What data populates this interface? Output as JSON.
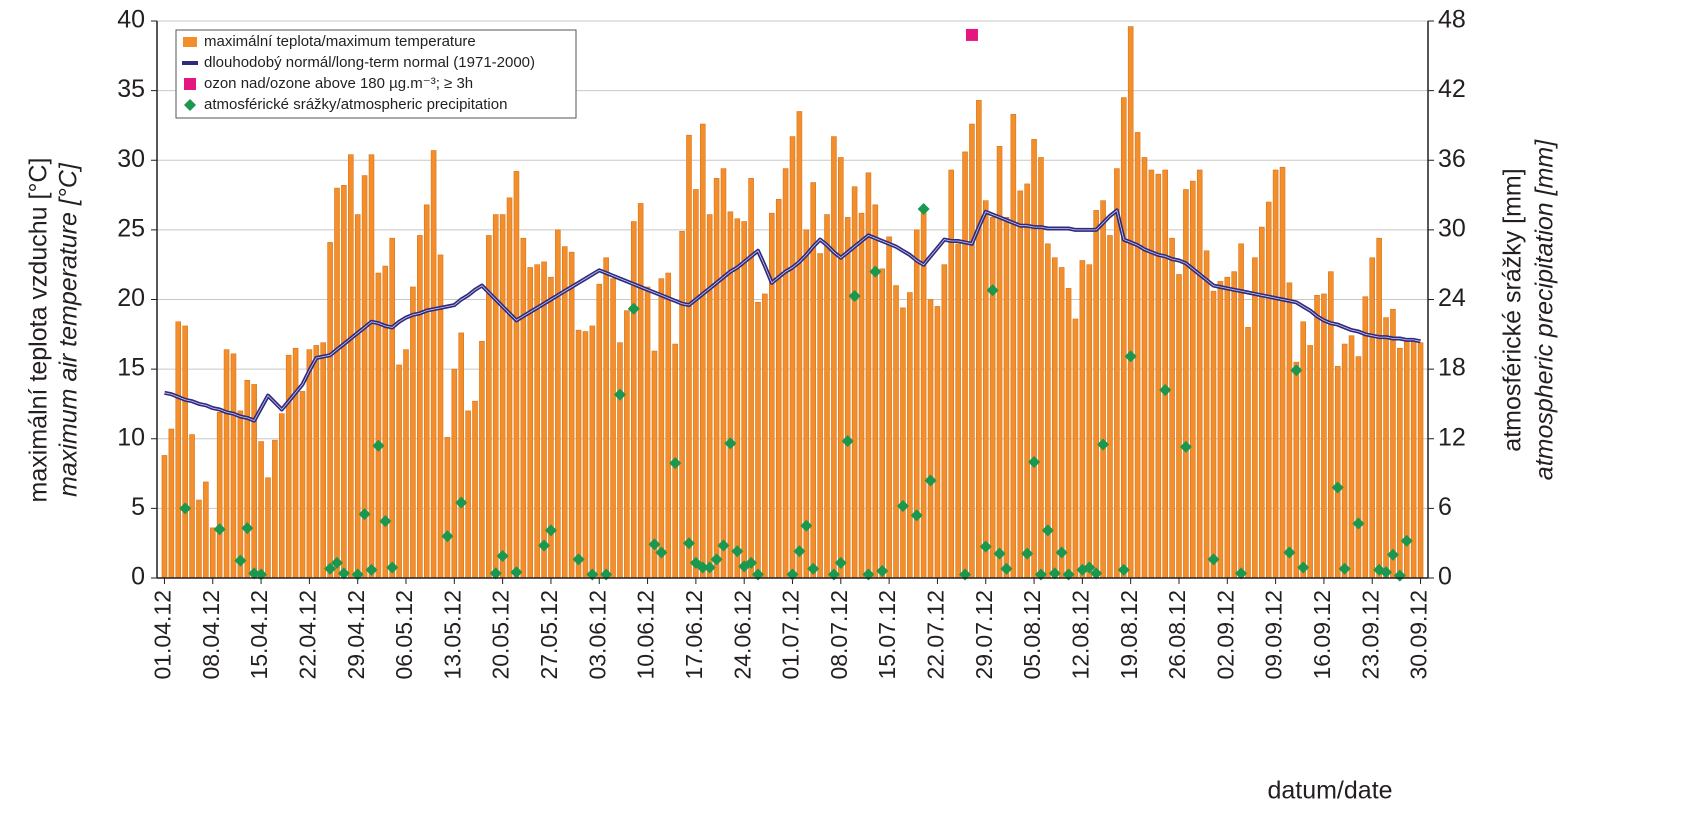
{
  "chart_data": {
    "type": "bar",
    "y_label": "maximální teplota vzduchu [°C]",
    "y_label_en": "maximum air temperature [°C]",
    "y2_label": "atmosférické srážky [mm]",
    "y2_label_en": "atmospheric precipitation [mm]",
    "x_label": "datum/date",
    "ylim": [
      0,
      40
    ],
    "yticks": [
      0,
      5,
      10,
      15,
      20,
      25,
      30,
      35,
      40
    ],
    "y2lim": [
      0,
      48
    ],
    "y2ticks": [
      0,
      6,
      12,
      18,
      24,
      30,
      36,
      42,
      48
    ],
    "grid": true,
    "legend": "upper left",
    "categories": [
      "01.04.12",
      null,
      null,
      null,
      null,
      null,
      null,
      "08.04.12",
      null,
      null,
      null,
      null,
      null,
      null,
      "15.04.12",
      null,
      null,
      null,
      null,
      null,
      null,
      "22.04.12",
      null,
      null,
      null,
      null,
      null,
      null,
      "29.04.12",
      null,
      null,
      null,
      null,
      null,
      null,
      "06.05.12",
      null,
      null,
      null,
      null,
      null,
      null,
      "13.05.12",
      null,
      null,
      null,
      null,
      null,
      null,
      "20.05.12",
      null,
      null,
      null,
      null,
      null,
      null,
      "27.05.12",
      null,
      null,
      null,
      null,
      null,
      null,
      "03.06.12",
      null,
      null,
      null,
      null,
      null,
      null,
      "10.06.12",
      null,
      null,
      null,
      null,
      null,
      null,
      "17.06.12",
      null,
      null,
      null,
      null,
      null,
      null,
      "24.06.12",
      null,
      null,
      null,
      null,
      null,
      null,
      "01.07.12",
      null,
      null,
      null,
      null,
      null,
      null,
      "08.07.12",
      null,
      null,
      null,
      null,
      null,
      null,
      "15.07.12",
      null,
      null,
      null,
      null,
      null,
      null,
      "22.07.12",
      null,
      null,
      null,
      null,
      null,
      null,
      "29.07.12",
      null,
      null,
      null,
      null,
      null,
      null,
      "05.08.12",
      null,
      null,
      null,
      null,
      null,
      null,
      "12.08.12",
      null,
      null,
      null,
      null,
      null,
      null,
      "19.08.12",
      null,
      null,
      null,
      null,
      null,
      null,
      "26.08.12",
      null,
      null,
      null,
      null,
      null,
      null,
      "02.09.12",
      null,
      null,
      null,
      null,
      null,
      null,
      "09.09.12",
      null,
      null,
      null,
      null,
      null,
      null,
      "16.09.12",
      null,
      null,
      null,
      null,
      null,
      null,
      "23.09.12",
      null,
      null,
      null,
      null,
      null,
      null,
      "30.09.12"
    ],
    "series": [
      {
        "name": "maximální teplota/maximum temperature",
        "type": "bar",
        "color": "#f28e2b",
        "values": [
          8.8,
          10.7,
          18.4,
          18.1,
          10.3,
          5.6,
          6.9,
          3.6,
          11.9,
          16.4,
          16.1,
          12.0,
          14.2,
          13.9,
          9.8,
          7.2,
          9.9,
          11.8,
          16.0,
          16.5,
          13.4,
          16.4,
          16.7,
          16.9,
          24.1,
          28.0,
          28.2,
          30.4,
          26.1,
          28.9,
          30.4,
          21.9,
          22.4,
          24.4,
          15.3,
          16.4,
          20.9,
          24.6,
          26.8,
          30.7,
          23.2,
          10.1,
          15.0,
          17.6,
          12.0,
          12.7,
          17.0,
          24.6,
          26.1,
          26.1,
          27.3,
          29.2,
          24.4,
          22.3,
          22.5,
          22.7,
          21.6,
          25.0,
          23.8,
          23.4,
          17.8,
          17.7,
          18.1,
          21.1,
          23.0,
          21.5,
          16.9,
          19.2,
          25.6,
          26.9,
          20.9,
          16.3,
          21.5,
          21.9,
          16.8,
          24.9,
          31.8,
          27.9,
          32.6,
          26.1,
          28.7,
          29.4,
          26.3,
          25.8,
          25.6,
          28.7,
          19.8,
          20.4,
          26.2,
          27.2,
          29.4,
          31.7,
          33.5,
          25.0,
          28.4,
          23.3,
          26.1,
          31.7,
          30.2,
          25.9,
          28.1,
          26.2,
          29.1,
          26.8,
          22.2,
          24.5,
          21.0,
          19.4,
          20.5,
          25.0,
          26.4,
          20.0,
          19.5,
          22.5,
          29.3,
          24.0,
          30.6,
          32.6,
          34.3,
          27.1,
          25.9,
          31.0,
          25.9,
          33.3,
          27.8,
          28.3,
          31.5,
          30.2,
          24.0,
          23.0,
          22.3,
          20.8,
          18.6,
          22.8,
          22.5,
          26.4,
          27.1,
          24.6,
          29.4,
          34.5,
          39.6,
          32.0,
          30.2,
          29.3,
          29.0,
          29.3,
          24.4,
          21.8,
          27.9,
          28.5,
          29.3,
          23.5,
          20.6,
          21.3,
          21.6,
          22.0,
          24.0,
          18.0,
          23.0,
          25.2,
          27.0,
          29.3,
          29.5,
          21.2,
          15.5,
          18.4,
          16.7,
          20.3,
          20.4,
          22.0,
          15.2,
          16.8,
          17.4,
          15.9,
          20.2,
          23.0,
          24.4,
          18.7,
          19.3,
          16.5,
          17.0,
          17.1,
          16.9
        ]
      },
      {
        "name": "dlouhodobý normál/long-term normal (1971-2000)",
        "type": "line",
        "color": "#2e2a80",
        "values": [
          13.3,
          13.2,
          13.0,
          12.8,
          12.7,
          12.5,
          12.4,
          12.2,
          12.1,
          11.9,
          11.8,
          11.6,
          11.5,
          11.3,
          12.2,
          13.1,
          12.6,
          12.1,
          12.7,
          13.3,
          13.9,
          14.9,
          15.8,
          15.9,
          16.0,
          16.4,
          16.8,
          17.2,
          17.6,
          18.0,
          18.4,
          18.3,
          18.1,
          18.0,
          18.4,
          18.7,
          18.9,
          19.0,
          19.2,
          19.3,
          19.4,
          19.5,
          19.6,
          20.0,
          20.3,
          20.7,
          21.0,
          20.5,
          20.0,
          19.5,
          19.0,
          18.5,
          18.8,
          19.1,
          19.4,
          19.7,
          20.0,
          20.3,
          20.6,
          20.9,
          21.2,
          21.5,
          21.8,
          22.1,
          21.9,
          21.7,
          21.5,
          21.3,
          21.1,
          20.9,
          20.7,
          20.5,
          20.3,
          20.1,
          19.9,
          19.7,
          19.6,
          20.0,
          20.4,
          20.8,
          21.2,
          21.6,
          22.0,
          22.3,
          22.7,
          23.1,
          23.5,
          22.4,
          21.2,
          21.6,
          22.0,
          22.3,
          22.7,
          23.2,
          23.8,
          24.3,
          23.9,
          23.4,
          23.0,
          23.4,
          23.8,
          24.2,
          24.6,
          24.4,
          24.2,
          24.0,
          23.8,
          23.5,
          23.2,
          22.8,
          22.5,
          23.1,
          23.7,
          24.3,
          24.2,
          24.2,
          24.1,
          24.0,
          25.2,
          26.3,
          26.1,
          25.9,
          25.7,
          25.5,
          25.3,
          25.3,
          25.2,
          25.2,
          25.1,
          25.1,
          25.1,
          25.1,
          25.0,
          25.0,
          25.0,
          25.0,
          25.5,
          26.0,
          26.4,
          24.3,
          24.1,
          23.9,
          23.6,
          23.4,
          23.2,
          23.1,
          22.9,
          22.8,
          22.6,
          22.2,
          21.8,
          21.4,
          21.0,
          20.9,
          20.8,
          20.7,
          20.6,
          20.5,
          20.4,
          20.3,
          20.2,
          20.1,
          20.0,
          19.9,
          19.8,
          19.5,
          19.2,
          18.8,
          18.5,
          18.3,
          18.2,
          18.0,
          17.8,
          17.7,
          17.5,
          17.4,
          17.3,
          17.3,
          17.2,
          17.2,
          17.1,
          17.1,
          17.0
        ]
      },
      {
        "name": "ozon nad/ozone above 180 µg.m⁻³; ≥ 3h",
        "type": "square",
        "color": "#e3177d",
        "values": [
          null,
          null,
          null,
          null,
          null,
          null,
          null,
          null,
          null,
          null,
          null,
          null,
          null,
          null,
          null,
          null,
          null,
          null,
          null,
          null,
          null,
          null,
          null,
          null,
          null,
          null,
          null,
          null,
          null,
          null,
          null,
          null,
          null,
          null,
          null,
          null,
          null,
          null,
          null,
          null,
          null,
          null,
          null,
          null,
          null,
          null,
          null,
          null,
          null,
          null,
          null,
          null,
          null,
          null,
          null,
          null,
          null,
          null,
          null,
          null,
          null,
          null,
          null,
          null,
          null,
          null,
          null,
          null,
          null,
          null,
          null,
          null,
          null,
          null,
          null,
          null,
          null,
          null,
          null,
          null,
          null,
          null,
          null,
          null,
          null,
          null,
          null,
          null,
          null,
          null,
          null,
          null,
          null,
          null,
          null,
          null,
          null,
          null,
          null,
          null,
          null,
          null,
          null,
          null,
          null,
          null,
          null,
          null,
          null,
          null,
          null,
          null,
          null,
          null,
          null,
          null,
          null,
          39,
          null,
          null,
          null,
          null,
          null,
          null,
          null,
          null,
          null,
          null,
          null,
          null,
          null,
          null,
          null,
          null,
          null,
          null,
          null,
          null,
          null,
          null,
          null,
          null,
          null,
          null,
          null,
          null,
          null,
          null,
          null,
          null,
          null,
          null,
          null,
          null,
          null,
          null,
          null,
          null,
          null,
          null,
          null,
          null,
          null,
          null,
          null,
          null,
          null,
          null,
          null,
          null,
          null,
          null,
          null,
          null,
          null,
          null,
          null,
          null,
          null,
          null,
          null,
          null,
          null
        ]
      },
      {
        "name": "atmosférické srážky/atmospheric precipitation",
        "type": "scatter",
        "axis": "y2",
        "color": "#1a9850",
        "values": [
          null,
          null,
          null,
          6.0,
          null,
          null,
          null,
          null,
          4.2,
          null,
          null,
          1.5,
          4.3,
          0.4,
          0.3,
          null,
          null,
          null,
          null,
          null,
          null,
          null,
          null,
          null,
          0.8,
          1.3,
          0.4,
          null,
          0.3,
          5.5,
          0.7,
          11.4,
          4.9,
          0.9,
          null,
          null,
          null,
          null,
          null,
          null,
          null,
          3.6,
          null,
          6.5,
          null,
          null,
          null,
          null,
          0.4,
          1.9,
          null,
          0.5,
          null,
          null,
          null,
          2.8,
          4.1,
          null,
          null,
          null,
          1.6,
          null,
          0.3,
          null,
          0.3,
          null,
          15.8,
          null,
          23.2,
          null,
          null,
          2.9,
          2.2,
          null,
          9.9,
          null,
          3.0,
          1.3,
          0.9,
          0.9,
          1.6,
          2.8,
          11.6,
          2.3,
          1.0,
          1.3,
          0.3,
          null,
          null,
          null,
          null,
          0.3,
          2.3,
          4.5,
          0.8,
          null,
          null,
          0.3,
          1.3,
          11.8,
          24.3,
          null,
          0.3,
          26.4,
          0.6,
          null,
          null,
          6.2,
          null,
          5.4,
          31.8,
          8.4,
          null,
          null,
          null,
          null,
          0.3,
          null,
          null,
          2.7,
          24.8,
          2.1,
          0.8,
          null,
          null,
          2.1,
          10.0,
          0.3,
          4.1,
          0.4,
          2.2,
          0.3,
          null,
          0.7,
          0.9,
          0.4,
          11.5,
          null,
          null,
          0.7,
          19.1,
          null,
          null,
          null,
          null,
          16.2,
          null,
          null,
          11.3,
          null,
          null,
          null,
          1.6,
          null,
          null,
          null,
          0.4,
          null,
          null,
          null,
          null,
          null,
          null,
          2.2,
          17.9,
          0.9,
          null,
          null,
          null,
          null,
          7.8,
          0.8,
          null,
          4.7,
          null,
          null,
          0.7,
          0.5,
          2.0,
          0.2,
          3.2,
          null,
          null
        ]
      }
    ]
  }
}
